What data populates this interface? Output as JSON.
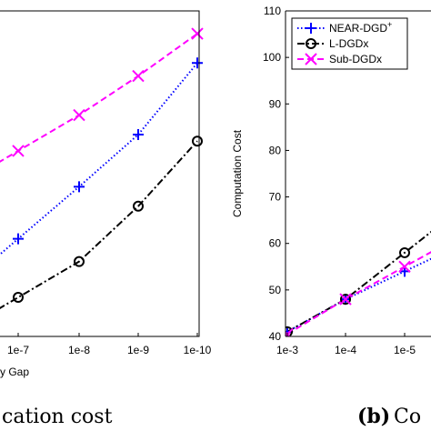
{
  "captions": {
    "left_text": "cation cost",
    "right_tag": "(b)",
    "right_text": "Co"
  },
  "chart_data": [
    {
      "type": "line",
      "x_tick_labels": [
        "1e-7",
        "1e-8",
        "1e-9",
        "1e-10"
      ],
      "xlabel": "y Gap",
      "ylabel": "",
      "series": [
        {
          "name": "NEAR-DGD+",
          "color": "#0000ff",
          "marker": "plus",
          "dash": "dotted",
          "values": [
            0.3,
            0.46,
            0.62,
            0.84
          ]
        },
        {
          "name": "L-DGDx",
          "color": "#000000",
          "marker": "circle",
          "dash": "dashdot",
          "values": [
            0.12,
            0.23,
            0.4,
            0.6
          ]
        },
        {
          "name": "Sub-DGDx",
          "color": "#ff00ff",
          "marker": "x",
          "dash": "dashed",
          "values": [
            0.57,
            0.68,
            0.8,
            0.93
          ]
        }
      ]
    },
    {
      "type": "line",
      "x_tick_labels": [
        "1e-3",
        "1e-4",
        "1e-5"
      ],
      "y_ticks": [
        40,
        50,
        60,
        70,
        80,
        90,
        100,
        110
      ],
      "ylim": [
        40,
        110
      ],
      "ylabel": "Computation Cost",
      "legend": "top-left",
      "series": [
        {
          "name": "NEAR-DGD",
          "name_sup": "+",
          "color": "#0000ff",
          "marker": "plus",
          "dash": "dotted",
          "values": [
            41,
            48,
            54
          ]
        },
        {
          "name": "L-DGDx",
          "color": "#000000",
          "marker": "circle",
          "dash": "dashdot",
          "values": [
            41,
            48,
            58
          ]
        },
        {
          "name": "Sub-DGDx",
          "color": "#ff00ff",
          "marker": "x",
          "dash": "dashed",
          "values": [
            40.5,
            48,
            55
          ]
        }
      ]
    }
  ]
}
